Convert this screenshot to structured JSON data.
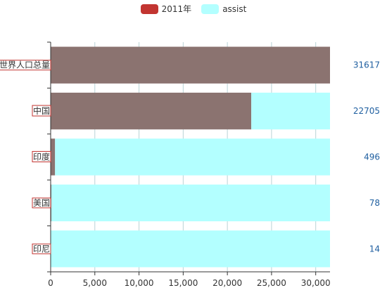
{
  "legend": {
    "items": [
      {
        "label": "2011年",
        "color": "#c23531"
      },
      {
        "label": "assist",
        "color": "#b3ffff"
      }
    ]
  },
  "chart_data": {
    "type": "bar",
    "orientation": "horizontal",
    "stacked": true,
    "categories": [
      "世界人口总量",
      "中国",
      "印度",
      "美国",
      "印尼"
    ],
    "series": [
      {
        "name": "2011年",
        "color": "#8b7370",
        "values": [
          31617,
          22705,
          496,
          78,
          14
        ]
      },
      {
        "name": "assist",
        "color": "#b3ffff",
        "values": [
          0,
          8912,
          31121,
          31539,
          31603
        ]
      }
    ],
    "data_labels": [
      "31617",
      "22705",
      "496",
      "78",
      "14"
    ],
    "xlim": [
      0,
      31617
    ],
    "xticks": [
      0,
      5000,
      10000,
      15000,
      20000,
      25000,
      30000
    ],
    "xtick_labels": [
      "0",
      "5,000",
      "10,000",
      "15,000",
      "20,000",
      "25,000",
      "30,000"
    ],
    "grid": true,
    "category_label_border_color": "#c23531",
    "data_label_color": "#1f5fa0",
    "legend_position": "top"
  }
}
